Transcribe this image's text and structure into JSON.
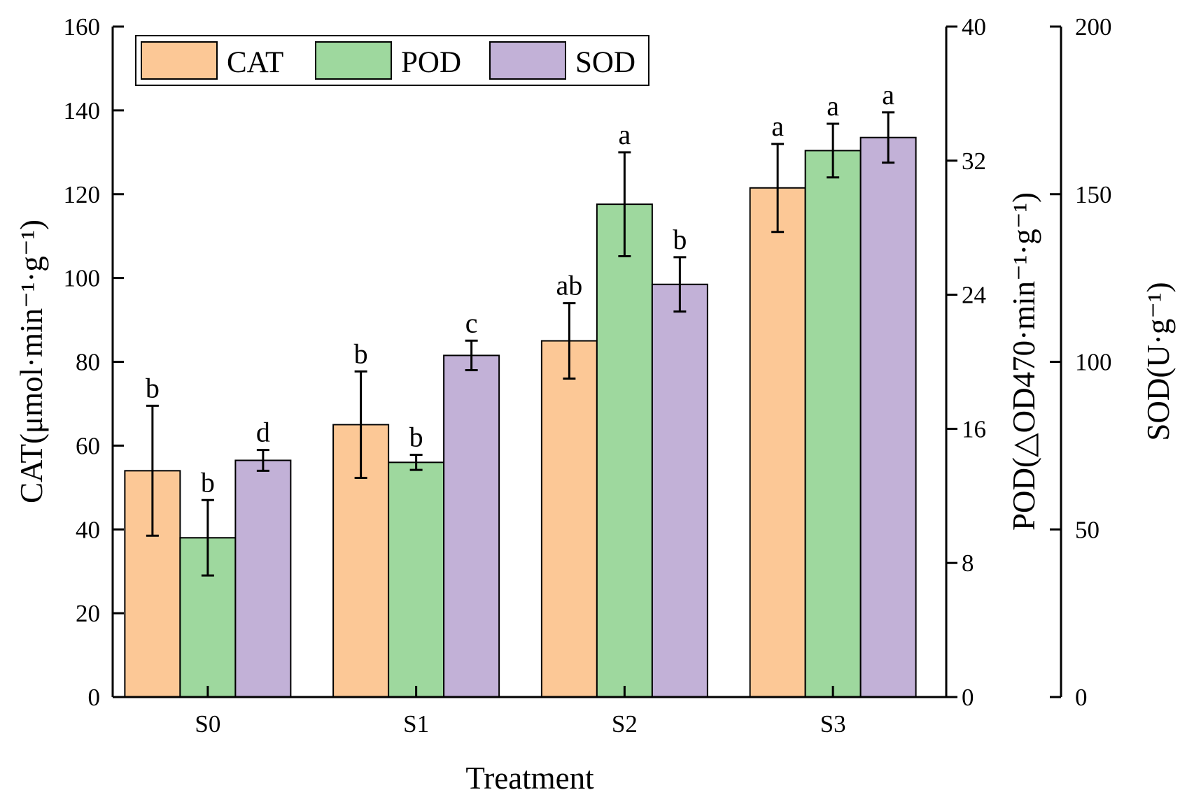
{
  "chart_data": {
    "type": "bar",
    "title": "",
    "xlabel": "Treatment",
    "categories": [
      "S0",
      "S1",
      "S2",
      "S3"
    ],
    "axes": {
      "left": {
        "label": "CAT(μmol·min⁻¹·g⁻¹)",
        "ylim": [
          0,
          160
        ],
        "ticks": [
          0,
          20,
          40,
          60,
          80,
          100,
          120,
          140,
          160
        ]
      },
      "right1": {
        "label": "POD(△OD470·min⁻¹·g⁻¹)",
        "ylim": [
          0,
          40
        ],
        "ticks": [
          0,
          8,
          16,
          24,
          32,
          40
        ]
      },
      "right2": {
        "label": "SOD(U·g⁻¹)",
        "ylim": [
          0,
          200
        ],
        "ticks": [
          0,
          50,
          100,
          150,
          200
        ]
      }
    },
    "series": [
      {
        "name": "CAT",
        "axis": "left",
        "color": "#FCC896",
        "values": [
          54,
          65,
          85,
          121.5
        ],
        "errors": [
          15.5,
          12.7,
          9,
          10.5
        ],
        "letters": [
          "b",
          "b",
          "ab",
          "a"
        ]
      },
      {
        "name": "POD",
        "axis": "right1",
        "color": "#9ED89E",
        "values": [
          9.5,
          14.0,
          29.4,
          32.6
        ],
        "errors": [
          2.25,
          0.45,
          3.1,
          1.6
        ],
        "letters": [
          "b",
          "b",
          "a",
          "a"
        ]
      },
      {
        "name": "SOD",
        "axis": "right2",
        "color": "#C2B1D7",
        "values": [
          70.6,
          101.9,
          123.1,
          166.9
        ],
        "errors": [
          3.1,
          4.4,
          8.1,
          7.5
        ],
        "letters": [
          "d",
          "c",
          "b",
          "a"
        ]
      }
    ],
    "legend": {
      "position": "top-left",
      "entries": [
        "CAT",
        "POD",
        "SOD"
      ]
    },
    "grid": false
  }
}
